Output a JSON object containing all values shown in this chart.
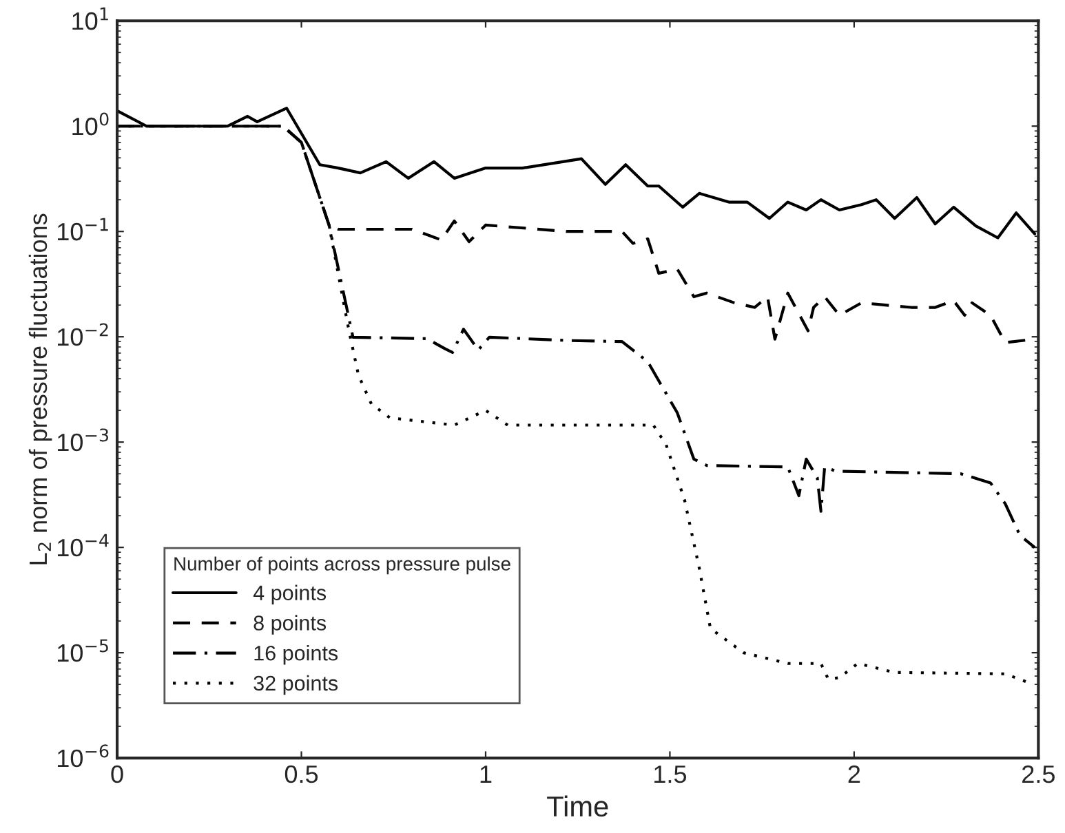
{
  "chart_data": {
    "type": "line",
    "xlabel": "Time",
    "ylabel": "L$_{2}$ norm of pressure fluctuations",
    "legend_title": "Number of points across pressure pulse",
    "legend": "bottom left",
    "grid": false,
    "log": "y",
    "marker": "none",
    "xlim": [
      0,
      2.5
    ],
    "xticks": [
      0,
      0.5,
      1,
      1.5,
      2,
      2.5
    ],
    "ylim": [
      1e-06,
      10
    ],
    "yticks": [
      {
        "value": 1e-06,
        "label": "10$^{−6}$"
      },
      {
        "value": 1e-05,
        "label": "10$^{−5}$"
      },
      {
        "value": 0.0001,
        "label": "10$^{−4}$"
      },
      {
        "value": 0.001,
        "label": "10$^{−3}$"
      },
      {
        "value": 0.01,
        "label": "10$^{−2}$"
      },
      {
        "value": 0.1,
        "label": "10$^{−1}$"
      },
      {
        "value": 1,
        "label": "10$^{0}$"
      },
      {
        "value": 10,
        "label": "10$^{1}$"
      }
    ],
    "series": [
      {
        "name": "4 points",
        "color": "#000000",
        "line_style": "solid",
        "x": [
          0,
          0.08,
          0.3,
          0.354,
          0.38,
          0.46,
          0.55,
          0.6,
          0.66,
          0.73,
          0.79,
          0.86,
          0.915,
          1.0,
          1.1,
          1.26,
          1.325,
          1.38,
          1.44,
          1.47,
          1.535,
          1.58,
          1.66,
          1.71,
          1.77,
          1.82,
          1.87,
          1.91,
          1.96,
          2.02,
          2.06,
          2.11,
          2.17,
          2.22,
          2.27,
          2.33,
          2.39,
          2.44,
          2.49
        ],
        "values": [
          1.4,
          1.0,
          1.0,
          1.24,
          1.1,
          1.48,
          0.43,
          0.4,
          0.36,
          0.46,
          0.32,
          0.46,
          0.32,
          0.4,
          0.4,
          0.49,
          0.28,
          0.43,
          0.27,
          0.27,
          0.17,
          0.23,
          0.19,
          0.19,
          0.133,
          0.19,
          0.16,
          0.2,
          0.16,
          0.18,
          0.2,
          0.133,
          0.21,
          0.118,
          0.17,
          0.113,
          0.087,
          0.15,
          0.095
        ]
      },
      {
        "name": "8 points",
        "color": "#000000",
        "line_style": "dashed",
        "x": [
          0,
          0.45,
          0.5,
          0.575,
          0.6,
          0.8,
          0.88,
          0.915,
          0.955,
          1.0,
          1.22,
          1.37,
          1.4,
          1.44,
          1.47,
          1.52,
          1.565,
          1.6,
          1.675,
          1.73,
          1.765,
          1.785,
          1.82,
          1.875,
          1.89,
          1.92,
          1.96,
          2.02,
          2.155,
          2.22,
          2.27,
          2.3,
          2.32,
          2.37,
          2.41,
          2.49
        ],
        "values": [
          1.0,
          1.0,
          0.7,
          0.115,
          0.105,
          0.105,
          0.083,
          0.126,
          0.08,
          0.115,
          0.1,
          0.1,
          0.077,
          0.085,
          0.04,
          0.044,
          0.024,
          0.026,
          0.021,
          0.019,
          0.024,
          0.0095,
          0.026,
          0.0114,
          0.019,
          0.024,
          0.016,
          0.021,
          0.019,
          0.019,
          0.022,
          0.016,
          0.021,
          0.016,
          0.0088,
          0.0095
        ]
      },
      {
        "name": "16 points",
        "color": "#000000",
        "line_style": "dashdot",
        "x": [
          0,
          0.45,
          0.5,
          0.575,
          0.64,
          0.84,
          0.89,
          0.91,
          0.94,
          0.98,
          1.01,
          1.23,
          1.37,
          1.44,
          1.52,
          1.565,
          1.6,
          1.82,
          1.85,
          1.87,
          1.9,
          1.91,
          1.92,
          1.95,
          2.29,
          2.37,
          2.41,
          2.45,
          2.49
        ],
        "values": [
          1.0,
          1.0,
          0.7,
          0.115,
          0.0099,
          0.0096,
          0.0077,
          0.0071,
          0.0118,
          0.0075,
          0.0099,
          0.0092,
          0.009,
          0.0058,
          0.0019,
          0.00069,
          0.0006,
          0.00058,
          0.00031,
          0.00069,
          0.00046,
          0.00022,
          0.00058,
          0.00053,
          0.0005,
          0.00041,
          0.00026,
          0.00013,
          0.0001
        ]
      },
      {
        "name": "32 points",
        "color": "#000000",
        "line_style": "dotted",
        "x": [
          0,
          0.45,
          0.5,
          0.575,
          0.63,
          0.655,
          0.69,
          0.74,
          0.915,
          1.0,
          1.06,
          1.455,
          1.49,
          1.54,
          1.58,
          1.61,
          1.7,
          1.82,
          1.91,
          1.93,
          1.96,
          2.01,
          2.11,
          2.41,
          2.48
        ],
        "values": [
          1.0,
          1.0,
          0.7,
          0.115,
          0.011,
          0.0043,
          0.0023,
          0.0017,
          0.00145,
          0.002,
          0.00145,
          0.00145,
          0.00094,
          0.00028,
          6.3e-05,
          1.7e-05,
          1e-05,
          7.9e-06,
          7.9e-06,
          5.6e-06,
          5.8e-06,
          7.9e-06,
          6.5e-06,
          6.3e-06,
          5.1e-06
        ]
      }
    ]
  }
}
